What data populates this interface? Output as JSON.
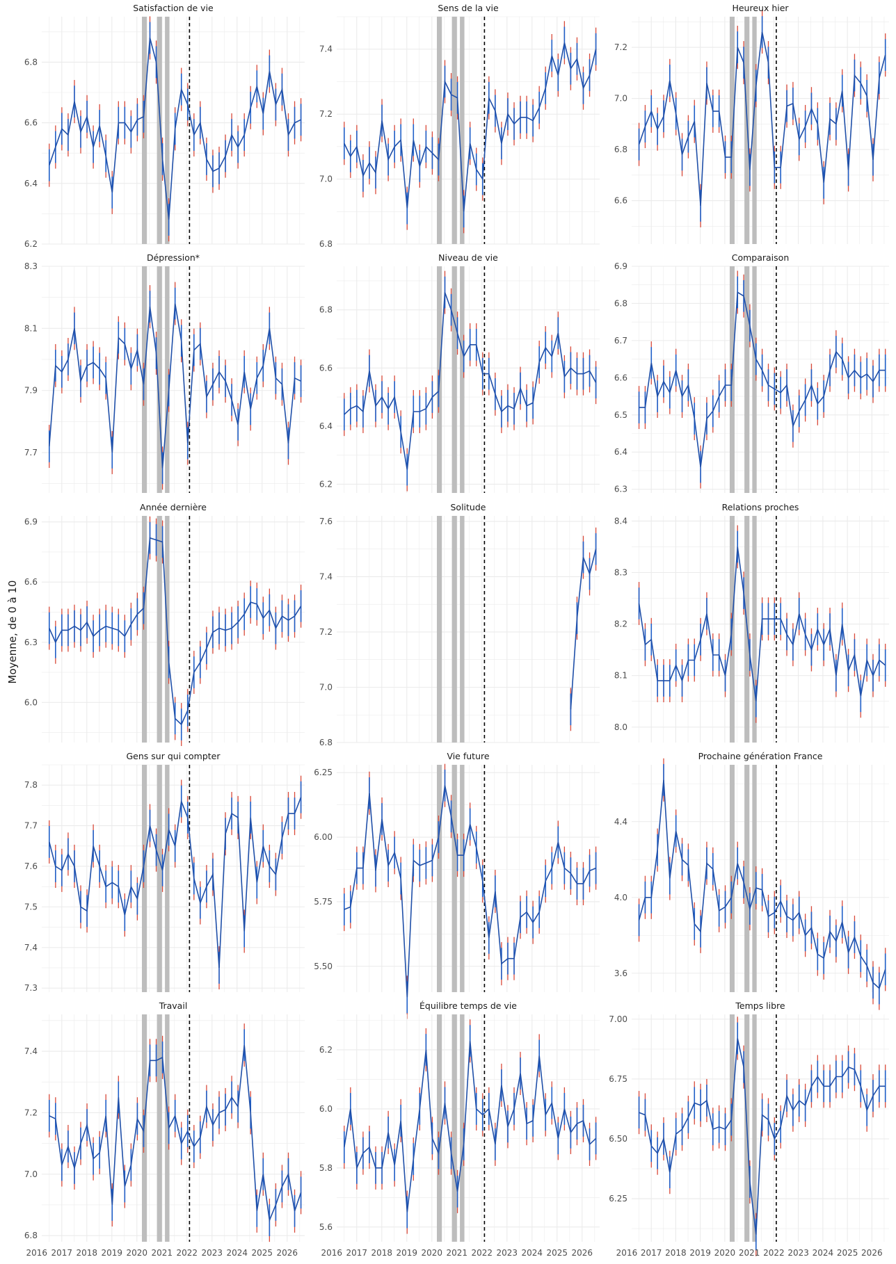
{
  "figure": {
    "ylabel": "Moyenne, de 0 à 10",
    "colors": {
      "line": "#1f4fa8",
      "errbar_inner": "#1f5fc8",
      "errbar_outer": "#d94a3a",
      "shade": "#bdbdbd",
      "grid": "#ebebeb",
      "text": "#4d4d4d"
    }
  },
  "chart_data": [
    {
      "type": "line",
      "title": "Satisfaction de vie",
      "ylim": [
        6.2,
        6.95
      ],
      "yticks": [
        6.2,
        6.4,
        6.6,
        6.8
      ],
      "values": [
        6.46,
        6.52,
        6.58,
        6.56,
        6.67,
        6.57,
        6.62,
        6.52,
        6.59,
        6.49,
        6.37,
        6.6,
        6.6,
        6.57,
        6.61,
        6.62,
        6.88,
        6.8,
        6.48,
        6.28,
        6.58,
        6.71,
        6.66,
        6.56,
        6.6,
        6.48,
        6.44,
        6.45,
        6.49,
        6.56,
        6.52,
        6.56,
        6.65,
        6.72,
        6.63,
        6.77,
        6.66,
        6.71,
        6.56,
        6.6,
        6.61
      ]
    },
    {
      "type": "line",
      "title": "Sens de la vie",
      "ylim": [
        6.8,
        7.5
      ],
      "yticks": [
        6.8,
        7.0,
        7.2,
        7.4
      ],
      "values": [
        7.11,
        7.07,
        7.1,
        7.01,
        7.05,
        7.02,
        7.18,
        7.06,
        7.1,
        7.12,
        6.91,
        7.12,
        7.04,
        7.1,
        7.08,
        7.06,
        7.3,
        7.26,
        7.25,
        6.9,
        7.11,
        7.03,
        7.0,
        7.25,
        7.21,
        7.11,
        7.2,
        7.17,
        7.19,
        7.19,
        7.18,
        7.22,
        7.28,
        7.38,
        7.32,
        7.42,
        7.34,
        7.37,
        7.28,
        7.32,
        7.4
      ]
    },
    {
      "type": "line",
      "title": "Heureux hier",
      "ylim": [
        6.43,
        7.32
      ],
      "yticks": [
        6.6,
        6.8,
        7.0,
        7.2
      ],
      "values": [
        6.82,
        6.89,
        6.95,
        6.88,
        6.93,
        7.07,
        6.94,
        6.78,
        6.85,
        6.91,
        6.58,
        7.06,
        6.95,
        6.95,
        6.77,
        6.77,
        7.2,
        7.14,
        6.72,
        7.05,
        7.26,
        7.14,
        6.73,
        6.73,
        6.97,
        6.98,
        6.84,
        6.89,
        6.96,
        6.9,
        6.67,
        6.92,
        6.9,
        7.03,
        6.72,
        7.09,
        7.06,
        7.01,
        6.76,
        7.08,
        7.17
      ]
    },
    {
      "type": "line",
      "title": "Dépression*",
      "ylim": [
        7.57,
        8.3
      ],
      "yticks": [
        7.7,
        7.9,
        8.1,
        8.3
      ],
      "values": [
        7.72,
        7.98,
        7.96,
        8.0,
        8.1,
        7.93,
        7.98,
        7.99,
        7.97,
        7.94,
        7.7,
        8.07,
        8.05,
        7.97,
        8.03,
        7.92,
        8.17,
        8.02,
        7.65,
        7.9,
        8.18,
        8.06,
        7.73,
        8.03,
        8.05,
        7.88,
        7.92,
        7.96,
        7.93,
        7.87,
        7.79,
        7.96,
        7.84,
        7.94,
        7.98,
        8.1,
        7.94,
        7.92,
        7.73,
        7.94,
        7.93
      ]
    },
    {
      "type": "line",
      "title": "Niveau de vie",
      "ylim": [
        6.17,
        6.95
      ],
      "yticks": [
        6.2,
        6.4,
        6.6,
        6.8
      ],
      "values": [
        6.44,
        6.46,
        6.47,
        6.45,
        6.59,
        6.47,
        6.5,
        6.46,
        6.5,
        6.38,
        6.25,
        6.45,
        6.45,
        6.46,
        6.5,
        6.52,
        6.86,
        6.8,
        6.72,
        6.64,
        6.68,
        6.68,
        6.58,
        6.58,
        6.51,
        6.45,
        6.47,
        6.46,
        6.53,
        6.47,
        6.48,
        6.62,
        6.67,
        6.64,
        6.72,
        6.57,
        6.6,
        6.58,
        6.58,
        6.59,
        6.55
      ]
    },
    {
      "type": "line",
      "title": "Comparaison",
      "ylim": [
        6.29,
        6.9
      ],
      "yticks": [
        6.3,
        6.4,
        6.5,
        6.6,
        6.7,
        6.8,
        6.9
      ],
      "values": [
        6.52,
        6.52,
        6.64,
        6.55,
        6.59,
        6.56,
        6.62,
        6.55,
        6.58,
        6.49,
        6.36,
        6.49,
        6.51,
        6.55,
        6.58,
        6.58,
        6.83,
        6.82,
        6.74,
        6.65,
        6.62,
        6.58,
        6.57,
        6.56,
        6.58,
        6.47,
        6.51,
        6.54,
        6.58,
        6.53,
        6.55,
        6.62,
        6.67,
        6.65,
        6.6,
        6.62,
        6.6,
        6.61,
        6.59,
        6.62,
        6.62
      ]
    },
    {
      "type": "line",
      "title": "Année dernière",
      "ylim": [
        5.8,
        6.93
      ],
      "yticks": [
        6.0,
        6.3,
        6.6,
        6.9
      ],
      "values": [
        6.37,
        6.3,
        6.36,
        6.36,
        6.38,
        6.36,
        6.4,
        6.33,
        6.36,
        6.38,
        6.37,
        6.36,
        6.33,
        6.39,
        6.44,
        6.47,
        6.82,
        6.81,
        6.8,
        6.2,
        5.92,
        5.89,
        5.96,
        6.15,
        6.2,
        6.27,
        6.35,
        6.37,
        6.36,
        6.37,
        6.4,
        6.44,
        6.5,
        6.49,
        6.42,
        6.46,
        6.37,
        6.43,
        6.41,
        6.43,
        6.48
      ]
    },
    {
      "type": "line",
      "title": "Solitude",
      "ylim": [
        6.8,
        7.62
      ],
      "yticks": [
        6.8,
        7.0,
        7.2,
        7.4,
        7.6
      ],
      "values": [
        null,
        null,
        null,
        null,
        null,
        null,
        null,
        null,
        null,
        null,
        null,
        null,
        null,
        null,
        null,
        null,
        null,
        null,
        null,
        null,
        null,
        null,
        null,
        null,
        null,
        null,
        null,
        null,
        null,
        null,
        null,
        null,
        null,
        null,
        null,
        null,
        6.92,
        7.25,
        7.47,
        7.41,
        7.5
      ]
    },
    {
      "type": "line",
      "title": "Relations proches",
      "ylim": [
        7.97,
        8.41
      ],
      "yticks": [
        8.0,
        8.1,
        8.2,
        8.3,
        8.4
      ],
      "values": [
        8.24,
        8.16,
        8.17,
        8.09,
        8.09,
        8.09,
        8.12,
        8.09,
        8.13,
        8.13,
        8.17,
        8.22,
        8.14,
        8.14,
        8.1,
        8.18,
        8.35,
        8.26,
        8.14,
        8.05,
        8.21,
        8.21,
        8.21,
        8.21,
        8.18,
        8.16,
        8.22,
        8.18,
        8.15,
        8.19,
        8.16,
        8.19,
        8.1,
        8.2,
        8.11,
        8.14,
        8.06,
        8.13,
        8.1,
        8.13,
        8.12
      ]
    },
    {
      "type": "line",
      "title": "Gens sur qui compter",
      "ylim": [
        7.29,
        7.85
      ],
      "yticks": [
        7.3,
        7.4,
        7.5,
        7.6,
        7.7,
        7.8
      ],
      "values": [
        7.66,
        7.6,
        7.59,
        7.63,
        7.6,
        7.5,
        7.49,
        7.65,
        7.6,
        7.55,
        7.56,
        7.55,
        7.48,
        7.55,
        7.52,
        7.6,
        7.7,
        7.64,
        7.59,
        7.69,
        7.65,
        7.76,
        7.72,
        7.57,
        7.51,
        7.55,
        7.58,
        7.35,
        7.68,
        7.73,
        7.72,
        7.44,
        7.72,
        7.56,
        7.65,
        7.6,
        7.58,
        7.67,
        7.73,
        7.73,
        7.77
      ]
    },
    {
      "type": "line",
      "title": "Vie future",
      "ylim": [
        5.4,
        6.28
      ],
      "yticks": [
        5.5,
        5.75,
        6.0,
        6.25
      ],
      "tick_labels": [
        "5.50",
        "5.75",
        "6.00",
        "6.25"
      ],
      "values": [
        5.72,
        5.73,
        5.88,
        5.88,
        6.17,
        5.87,
        6.07,
        5.89,
        5.94,
        5.84,
        5.38,
        5.91,
        5.89,
        5.9,
        5.91,
        6.0,
        6.2,
        6.08,
        5.93,
        5.93,
        6.05,
        5.96,
        5.83,
        5.61,
        5.79,
        5.51,
        5.53,
        5.53,
        5.69,
        5.71,
        5.67,
        5.71,
        5.83,
        5.88,
        5.98,
        5.88,
        5.86,
        5.82,
        5.82,
        5.87,
        5.88
      ]
    },
    {
      "type": "line",
      "title": "Prochaine génération France",
      "ylim": [
        3.5,
        4.7
      ],
      "yticks": [
        3.6,
        4.0,
        4.4
      ],
      "values": [
        3.88,
        4.0,
        4.0,
        4.25,
        4.62,
        4.1,
        4.35,
        4.2,
        4.17,
        3.86,
        3.82,
        4.18,
        4.15,
        3.93,
        3.95,
        4.0,
        4.18,
        4.08,
        3.94,
        4.05,
        4.04,
        3.9,
        3.92,
        3.98,
        3.9,
        3.88,
        3.92,
        3.8,
        3.84,
        3.7,
        3.68,
        3.82,
        3.77,
        3.87,
        3.71,
        3.79,
        3.69,
        3.64,
        3.55,
        3.52,
        3.62
      ]
    },
    {
      "type": "line",
      "title": "Travail",
      "ylim": [
        6.78,
        7.52
      ],
      "yticks": [
        6.8,
        7.0,
        7.2,
        7.4
      ],
      "values": [
        7.19,
        7.18,
        7.03,
        7.09,
        7.02,
        7.1,
        7.16,
        7.05,
        7.07,
        7.19,
        6.9,
        7.25,
        6.96,
        7.03,
        7.18,
        7.14,
        7.37,
        7.37,
        7.38,
        7.15,
        7.19,
        7.1,
        7.14,
        7.09,
        7.12,
        7.22,
        7.16,
        7.2,
        7.21,
        7.25,
        7.22,
        7.42,
        7.2,
        6.88,
        7.0,
        6.85,
        6.9,
        6.96,
        7.0,
        6.88,
        6.94
      ]
    },
    {
      "type": "line",
      "title": "Équilibre temps de vie",
      "ylim": [
        5.55,
        6.32
      ],
      "yticks": [
        5.6,
        5.8,
        6.0,
        6.2
      ],
      "values": [
        5.87,
        6.0,
        5.8,
        5.85,
        5.87,
        5.8,
        5.8,
        5.92,
        5.81,
        5.96,
        5.65,
        5.83,
        6.0,
        6.2,
        5.9,
        5.85,
        6.02,
        5.85,
        5.72,
        5.88,
        6.23,
        6.0,
        5.98,
        6.0,
        5.88,
        6.08,
        5.94,
        6.0,
        6.12,
        5.95,
        5.96,
        6.18,
        5.98,
        6.02,
        5.9,
        6.0,
        5.92,
        5.95,
        5.96,
        5.88,
        5.9
      ]
    },
    {
      "type": "line",
      "title": "Temps libre",
      "ylim": [
        6.07,
        7.02
      ],
      "yticks": [
        6.25,
        6.5,
        6.75,
        7.0
      ],
      "tick_labels": [
        "6.25",
        "6.50",
        "6.75",
        "7.00"
      ],
      "values": [
        6.61,
        6.6,
        6.47,
        6.44,
        6.5,
        6.36,
        6.52,
        6.54,
        6.59,
        6.65,
        6.64,
        6.66,
        6.54,
        6.55,
        6.54,
        6.58,
        6.92,
        6.8,
        6.32,
        6.1,
        6.6,
        6.58,
        6.5,
        6.55,
        6.68,
        6.62,
        6.66,
        6.64,
        6.72,
        6.76,
        6.72,
        6.72,
        6.76,
        6.76,
        6.8,
        6.79,
        6.72,
        6.62,
        6.68,
        6.72,
        6.72
      ]
    }
  ],
  "x_axis": {
    "start": 2016.5,
    "end": 2026.55,
    "ticks": [
      2016,
      2017,
      2018,
      2019,
      2020,
      2021,
      2022,
      2023,
      2024,
      2025,
      2026
    ],
    "xlim": [
      2016.2,
      2026.7
    ],
    "shaded_periods": [
      [
        2020.2,
        2020.4
      ],
      [
        2020.8,
        2021.0
      ],
      [
        2021.12,
        2021.3
      ]
    ],
    "dashed_line": 2022.1
  }
}
